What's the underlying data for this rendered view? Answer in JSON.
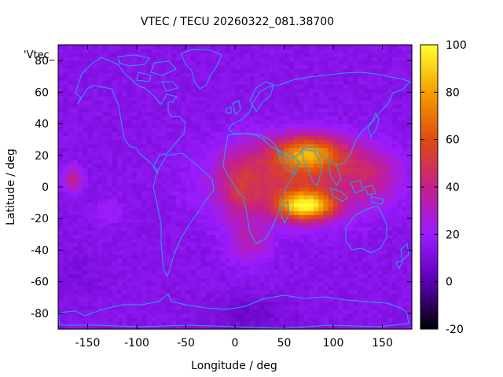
{
  "chart_data": {
    "type": "heatmap",
    "title": "VTEC / TECU 20260322_081.38700",
    "xlabel": "Longitude / deg",
    "ylabel": "Latitude / deg",
    "series_key": "'Vtec_",
    "xlim": [
      -180,
      180
    ],
    "ylim": [
      -90,
      90
    ],
    "x_ticks": [
      -150,
      -100,
      -50,
      0,
      50,
      100,
      150
    ],
    "y_ticks": [
      -80,
      -60,
      -40,
      -20,
      0,
      20,
      40,
      60,
      80
    ],
    "colorbar": {
      "range": [
        -20,
        100
      ],
      "ticks": [
        -20,
        0,
        20,
        40,
        60,
        80,
        100
      ],
      "colors": [
        "#000000",
        "#5a00b4",
        "#9a1cff",
        "#c4208a",
        "#e04a10",
        "#f4a000",
        "#ffff30"
      ]
    },
    "grid_step_deg": {
      "lon": 5,
      "lat": 2.5
    },
    "background_tec": 14,
    "features": [
      {
        "name": "equatorial anomaly north crest",
        "lon": 75,
        "lat": 22,
        "peak": 68
      },
      {
        "name": "equatorial anomaly south crest",
        "lon": 72,
        "lat": -12,
        "peak": 94
      },
      {
        "name": "atlantic enhancement",
        "lon": 5,
        "lat": 0,
        "peak": 48
      },
      {
        "name": "pacific patch",
        "lon": -165,
        "lat": 5,
        "peak": 40
      }
    ],
    "overlay": "coastlines"
  }
}
